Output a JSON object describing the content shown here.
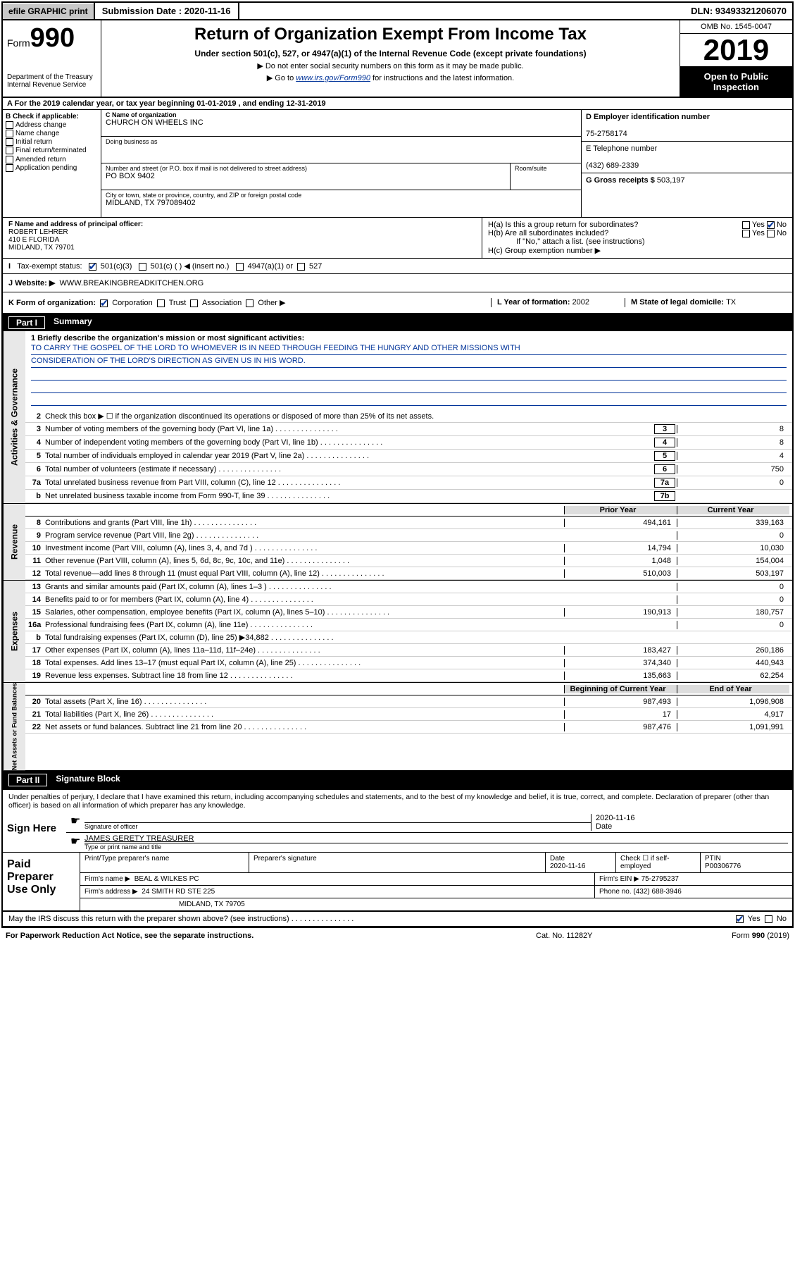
{
  "topbar": {
    "efile": "efile GRAPHIC print",
    "submission": "Submission Date : 2020-11-16",
    "dln": "DLN: 93493321206070"
  },
  "header": {
    "form_prefix": "Form",
    "form_num": "990",
    "dept": "Department of the Treasury",
    "irs": "Internal Revenue Service",
    "title": "Return of Organization Exempt From Income Tax",
    "sub": "Under section 501(c), 527, or 4947(a)(1) of the Internal Revenue Code (except private foundations)",
    "note1": "▶ Do not enter social security numbers on this form as it may be made public.",
    "note2_pre": "▶ Go to ",
    "note2_link": "www.irs.gov/Form990",
    "note2_post": " for instructions and the latest information.",
    "omb": "OMB No. 1545-0047",
    "year": "2019",
    "open": "Open to Public Inspection"
  },
  "lineA": "A For the 2019 calendar year, or tax year beginning 01-01-2019   , and ending 12-31-2019",
  "colB": {
    "title": "B Check if applicable:",
    "opts": [
      "Address change",
      "Name change",
      "Initial return",
      "Final return/terminated",
      "Amended return",
      "Application pending"
    ]
  },
  "colC": {
    "name_lbl": "C Name of organization",
    "name": "CHURCH ON WHEELS INC",
    "dba_lbl": "Doing business as",
    "addr_lbl": "Number and street (or P.O. box if mail is not delivered to street address)",
    "room_lbl": "Room/suite",
    "addr": "PO BOX 9402",
    "city_lbl": "City or town, state or province, country, and ZIP or foreign postal code",
    "city": "MIDLAND, TX  797089402"
  },
  "colD": {
    "ein_lbl": "D Employer identification number",
    "ein": "75-2758174",
    "phone_lbl": "E Telephone number",
    "phone": "(432) 689-2339",
    "gross_lbl": "G Gross receipts $ ",
    "gross": "503,197"
  },
  "colF": {
    "lbl": "F Name and address of principal officer:",
    "name": "ROBERT LEHRER",
    "addr1": "410 E FLORIDA",
    "addr2": "MIDLAND, TX  79701"
  },
  "colH": {
    "a": "H(a)  Is this a group return for subordinates?",
    "b": "H(b)  Are all subordinates included?",
    "note": "If \"No,\" attach a list. (see instructions)",
    "c": "H(c)  Group exemption number ▶"
  },
  "rowI": {
    "lbl": "Tax-exempt status:",
    "o1": "501(c)(3)",
    "o2": "501(c) (  ) ◀ (insert no.)",
    "o3": "4947(a)(1) or",
    "o4": "527"
  },
  "rowJ": {
    "lbl": "J   Website: ▶",
    "val": "WWW.BREAKINGBREADKITCHEN.ORG"
  },
  "rowK": {
    "lbl": "K Form of organization:",
    "o1": "Corporation",
    "o2": "Trust",
    "o3": "Association",
    "o4": "Other ▶",
    "l_lbl": "L Year of formation: ",
    "l_val": "2002",
    "m_lbl": "M State of legal domicile: ",
    "m_val": "TX"
  },
  "part1": {
    "num": "Part I",
    "title": "Summary"
  },
  "mission": {
    "q": "1   Briefly describe the organization's mission or most significant activities:",
    "l1": "TO CARRY THE GOSPEL OF THE LORD TO WHOMEVER IS IN NEED THROUGH FEEDING THE HUNGRY AND OTHER MISSIONS WITH",
    "l2": "CONSIDERATION OF THE LORD'S DIRECTION AS GIVEN US IN HIS WORD."
  },
  "lines_ag": [
    {
      "n": "2",
      "t": "Check this box ▶ ☐  if the organization discontinued its operations or disposed of more than 25% of its net assets."
    },
    {
      "n": "3",
      "t": "Number of voting members of the governing body (Part VI, line 1a)",
      "box": "3",
      "v": "8"
    },
    {
      "n": "4",
      "t": "Number of independent voting members of the governing body (Part VI, line 1b)",
      "box": "4",
      "v": "8"
    },
    {
      "n": "5",
      "t": "Total number of individuals employed in calendar year 2019 (Part V, line 2a)",
      "box": "5",
      "v": "4"
    },
    {
      "n": "6",
      "t": "Total number of volunteers (estimate if necessary)",
      "box": "6",
      "v": "750"
    },
    {
      "n": "7a",
      "t": "Total unrelated business revenue from Part VIII, column (C), line 12",
      "box": "7a",
      "v": "0"
    },
    {
      "n": "b",
      "t": "Net unrelated business taxable income from Form 990-T, line 39",
      "box": "7b",
      "v": ""
    }
  ],
  "col_hdrs": {
    "py": "Prior Year",
    "cy": "Current Year"
  },
  "lines_rev": [
    {
      "n": "8",
      "t": "Contributions and grants (Part VIII, line 1h)",
      "py": "494,161",
      "cy": "339,163"
    },
    {
      "n": "9",
      "t": "Program service revenue (Part VIII, line 2g)",
      "py": "",
      "cy": "0"
    },
    {
      "n": "10",
      "t": "Investment income (Part VIII, column (A), lines 3, 4, and 7d )",
      "py": "14,794",
      "cy": "10,030"
    },
    {
      "n": "11",
      "t": "Other revenue (Part VIII, column (A), lines 5, 6d, 8c, 9c, 10c, and 11e)",
      "py": "1,048",
      "cy": "154,004"
    },
    {
      "n": "12",
      "t": "Total revenue—add lines 8 through 11 (must equal Part VIII, column (A), line 12)",
      "py": "510,003",
      "cy": "503,197"
    }
  ],
  "lines_exp": [
    {
      "n": "13",
      "t": "Grants and similar amounts paid (Part IX, column (A), lines 1–3 )",
      "py": "",
      "cy": "0"
    },
    {
      "n": "14",
      "t": "Benefits paid to or for members (Part IX, column (A), line 4)",
      "py": "",
      "cy": "0"
    },
    {
      "n": "15",
      "t": "Salaries, other compensation, employee benefits (Part IX, column (A), lines 5–10)",
      "py": "190,913",
      "cy": "180,757"
    },
    {
      "n": "16a",
      "t": "Professional fundraising fees (Part IX, column (A), line 11e)",
      "py": "",
      "cy": "0"
    },
    {
      "n": "b",
      "t": "Total fundraising expenses (Part IX, column (D), line 25) ▶34,882",
      "py": "shade",
      "cy": "shade"
    },
    {
      "n": "17",
      "t": "Other expenses (Part IX, column (A), lines 11a–11d, 11f–24e)",
      "py": "183,427",
      "cy": "260,186"
    },
    {
      "n": "18",
      "t": "Total expenses. Add lines 13–17 (must equal Part IX, column (A), line 25)",
      "py": "374,340",
      "cy": "440,943"
    },
    {
      "n": "19",
      "t": "Revenue less expenses. Subtract line 18 from line 12",
      "py": "135,663",
      "cy": "62,254"
    }
  ],
  "col_hdrs2": {
    "py": "Beginning of Current Year",
    "cy": "End of Year"
  },
  "lines_na": [
    {
      "n": "20",
      "t": "Total assets (Part X, line 16)",
      "py": "987,493",
      "cy": "1,096,908"
    },
    {
      "n": "21",
      "t": "Total liabilities (Part X, line 26)",
      "py": "17",
      "cy": "4,917"
    },
    {
      "n": "22",
      "t": "Net assets or fund balances. Subtract line 21 from line 20",
      "py": "987,476",
      "cy": "1,091,991"
    }
  ],
  "side_labels": {
    "ag": "Activities & Governance",
    "rev": "Revenue",
    "exp": "Expenses",
    "na": "Net Assets or Fund Balances"
  },
  "part2": {
    "num": "Part II",
    "title": "Signature Block"
  },
  "sig": {
    "decl": "Under penalties of perjury, I declare that I have examined this return, including accompanying schedules and statements, and to the best of my knowledge and belief, it is true, correct, and complete. Declaration of preparer (other than officer) is based on all information of which preparer has any knowledge.",
    "sign_here": "Sign Here",
    "sig_lbl": "Signature of officer",
    "date_lbl": "Date",
    "date": "2020-11-16",
    "name": "JAMES GERETY TREASURER",
    "name_lbl": "Type or print name and title"
  },
  "prep": {
    "title": "Paid Preparer Use Only",
    "h1": "Print/Type preparer's name",
    "h2": "Preparer's signature",
    "h3": "Date",
    "h3v": "2020-11-16",
    "h4": "Check ☐ if self-employed",
    "h5": "PTIN",
    "h5v": "P00306776",
    "firm_lbl": "Firm's name     ▶",
    "firm": "BEAL & WILKES PC",
    "ein_lbl": "Firm's EIN ▶",
    "ein": "75-2795237",
    "addr_lbl": "Firm's address ▶",
    "addr1": "24 SMITH RD STE 225",
    "addr2": "MIDLAND, TX  79705",
    "phone_lbl": "Phone no.",
    "phone": "(432) 688-3946"
  },
  "may": "May the IRS discuss this return with the preparer shown above? (see instructions)",
  "footer": {
    "l": "For Paperwork Reduction Act Notice, see the separate instructions.",
    "c": "Cat. No. 11282Y",
    "r": "Form 990 (2019)"
  }
}
